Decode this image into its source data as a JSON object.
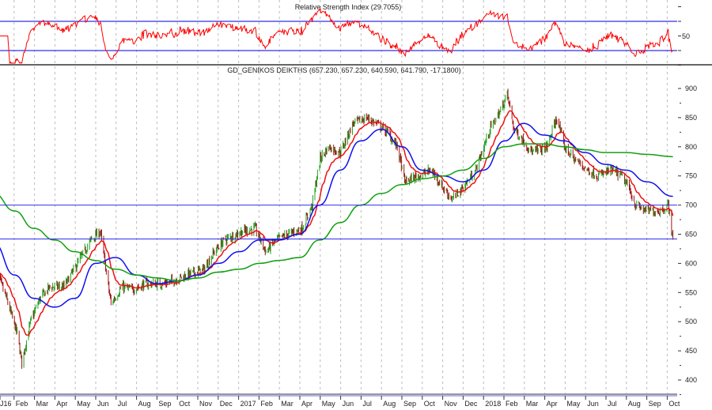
{
  "chart_data": {
    "type": "candlestick",
    "rsi_panel": {
      "title": "Relative Strength Index (29.7055)",
      "tick_labels": [
        "50"
      ],
      "levels": [
        30,
        70
      ],
      "ylim": [
        0,
        100
      ]
    },
    "price_panel": {
      "title": "GD_GENIKOS DEIKTHS (657.230, 657.230, 640.590, 641.790, -17.1800)",
      "last_bar": {
        "open": 657.23,
        "high": 657.23,
        "low": 640.59,
        "close": 641.79,
        "change": -17.18
      },
      "ylim": [
        380,
        920
      ],
      "y_tick_labels": [
        "900",
        "850",
        "800",
        "750",
        "700",
        "650",
        "600",
        "550",
        "500",
        "450",
        "400"
      ],
      "y_ticks": [
        900,
        850,
        800,
        750,
        700,
        650,
        600,
        550,
        500,
        450,
        400
      ],
      "horizontal_lines": [
        700,
        641.79
      ],
      "close_keypoints": [
        [
          "2016-01-04",
          590
        ],
        [
          "2016-01-20",
          540
        ],
        [
          "2016-02-05",
          480
        ],
        [
          "2016-02-12",
          430
        ],
        [
          "2016-02-25",
          500
        ],
        [
          "2016-03-10",
          540
        ],
        [
          "2016-03-25",
          560
        ],
        [
          "2016-04-15",
          560
        ],
        [
          "2016-05-10",
          610
        ],
        [
          "2016-05-25",
          640
        ],
        [
          "2016-06-08",
          655
        ],
        [
          "2016-06-24",
          530
        ],
        [
          "2016-07-10",
          560
        ],
        [
          "2016-07-25",
          555
        ],
        [
          "2016-08-15",
          565
        ],
        [
          "2016-09-10",
          565
        ],
        [
          "2016-09-25",
          570
        ],
        [
          "2016-10-15",
          580
        ],
        [
          "2016-11-10",
          590
        ],
        [
          "2016-11-25",
          620
        ],
        [
          "2016-12-10",
          640
        ],
        [
          "2017-01-05",
          655
        ],
        [
          "2017-01-25",
          660
        ],
        [
          "2017-02-10",
          620
        ],
        [
          "2017-02-25",
          640
        ],
        [
          "2017-03-15",
          650
        ],
        [
          "2017-04-05",
          660
        ],
        [
          "2017-04-20",
          700
        ],
        [
          "2017-05-02",
          780
        ],
        [
          "2017-05-15",
          800
        ],
        [
          "2017-06-01",
          790
        ],
        [
          "2017-06-20",
          840
        ],
        [
          "2017-07-10",
          850
        ],
        [
          "2017-07-25",
          840
        ],
        [
          "2017-08-10",
          825
        ],
        [
          "2017-08-25",
          800
        ],
        [
          "2017-09-05",
          740
        ],
        [
          "2017-09-25",
          750
        ],
        [
          "2017-10-15",
          760
        ],
        [
          "2017-11-01",
          730
        ],
        [
          "2017-11-15",
          710
        ],
        [
          "2017-12-01",
          730
        ],
        [
          "2017-12-20",
          760
        ],
        [
          "2018-01-10",
          830
        ],
        [
          "2018-01-25",
          860
        ],
        [
          "2018-02-05",
          890
        ],
        [
          "2018-02-15",
          830
        ],
        [
          "2018-03-01",
          810
        ],
        [
          "2018-03-15",
          790
        ],
        [
          "2018-04-05",
          800
        ],
        [
          "2018-04-20",
          850
        ],
        [
          "2018-05-01",
          800
        ],
        [
          "2018-05-15",
          780
        ],
        [
          "2018-06-05",
          760
        ],
        [
          "2018-06-20",
          750
        ],
        [
          "2018-07-10",
          760
        ],
        [
          "2018-07-25",
          750
        ],
        [
          "2018-08-05",
          730
        ],
        [
          "2018-08-15",
          700
        ],
        [
          "2018-09-01",
          690
        ],
        [
          "2018-09-20",
          690
        ],
        [
          "2018-10-03",
          700
        ],
        [
          "2018-10-10",
          641.79
        ]
      ],
      "moving_averages": [
        {
          "color": "#1010ee",
          "points": [
            [
              "2016-01-01",
              635
            ],
            [
              "2016-02-01",
              580
            ],
            [
              "2016-03-01",
              540
            ],
            [
              "2016-04-01",
              525
            ],
            [
              "2016-05-01",
              540
            ],
            [
              "2016-06-01",
              600
            ],
            [
              "2016-07-01",
              610
            ],
            [
              "2016-08-01",
              580
            ],
            [
              "2016-09-01",
              565
            ],
            [
              "2016-10-01",
              570
            ],
            [
              "2016-11-01",
              580
            ],
            [
              "2016-12-01",
              600
            ],
            [
              "2017-01-01",
              620
            ],
            [
              "2017-02-01",
              640
            ],
            [
              "2017-03-01",
              640
            ],
            [
              "2017-04-01",
              650
            ],
            [
              "2017-05-01",
              700
            ],
            [
              "2017-06-01",
              760
            ],
            [
              "2017-07-01",
              810
            ],
            [
              "2017-08-01",
              830
            ],
            [
              "2017-09-01",
              800
            ],
            [
              "2017-10-01",
              760
            ],
            [
              "2017-11-01",
              750
            ],
            [
              "2017-12-01",
              740
            ],
            [
              "2018-01-01",
              760
            ],
            [
              "2018-02-01",
              810
            ],
            [
              "2018-03-01",
              840
            ],
            [
              "2018-04-01",
              820
            ],
            [
              "2018-05-01",
              810
            ],
            [
              "2018-06-01",
              790
            ],
            [
              "2018-07-01",
              770
            ],
            [
              "2018-08-01",
              760
            ],
            [
              "2018-09-01",
              740
            ],
            [
              "2018-10-10",
              715
            ]
          ]
        },
        {
          "color": "#10a010",
          "points": [
            [
              "2016-01-01",
              720
            ],
            [
              "2016-02-01",
              690
            ],
            [
              "2016-03-01",
              660
            ],
            [
              "2016-04-01",
              640
            ],
            [
              "2016-05-01",
              620
            ],
            [
              "2016-06-01",
              605
            ],
            [
              "2016-07-01",
              590
            ],
            [
              "2016-08-01",
              580
            ],
            [
              "2016-09-01",
              575
            ],
            [
              "2016-10-01",
              570
            ],
            [
              "2016-11-01",
              575
            ],
            [
              "2016-12-01",
              585
            ],
            [
              "2017-01-01",
              590
            ],
            [
              "2017-02-01",
              600
            ],
            [
              "2017-03-01",
              605
            ],
            [
              "2017-04-01",
              610
            ],
            [
              "2017-05-01",
              640
            ],
            [
              "2017-06-01",
              670
            ],
            [
              "2017-07-01",
              700
            ],
            [
              "2017-08-01",
              720
            ],
            [
              "2017-09-01",
              735
            ],
            [
              "2017-10-01",
              745
            ],
            [
              "2017-11-01",
              750
            ],
            [
              "2017-12-01",
              760
            ],
            [
              "2018-01-01",
              780
            ],
            [
              "2018-02-01",
              800
            ],
            [
              "2018-03-01",
              805
            ],
            [
              "2018-04-01",
              805
            ],
            [
              "2018-05-01",
              800
            ],
            [
              "2018-06-01",
              795
            ],
            [
              "2018-07-01",
              790
            ],
            [
              "2018-08-01",
              790
            ],
            [
              "2018-09-01",
              787
            ],
            [
              "2018-10-10",
              783
            ]
          ]
        }
      ],
      "short_ma_color": "#ee1010"
    },
    "x_tick_labels": [
      "J16",
      "Feb",
      "Mar",
      "Apr",
      "May",
      "Jun",
      "Jul",
      "Aug",
      "Sep",
      "Oct",
      "Nov",
      "Dec",
      "2017",
      "Feb",
      "Mar",
      "Apr",
      "May",
      "Jun",
      "Jul",
      "Aug",
      "Sep",
      "Oct",
      "Nov",
      "Dec",
      "2018",
      "Feb",
      "Mar",
      "Apr",
      "May",
      "Jun",
      "Jul",
      "Aug",
      "Sep",
      "Oct"
    ],
    "colors": {
      "up": "#20a020",
      "down": "#a01010",
      "level_line": "#3030ee",
      "rsi": "#ff0000"
    }
  }
}
